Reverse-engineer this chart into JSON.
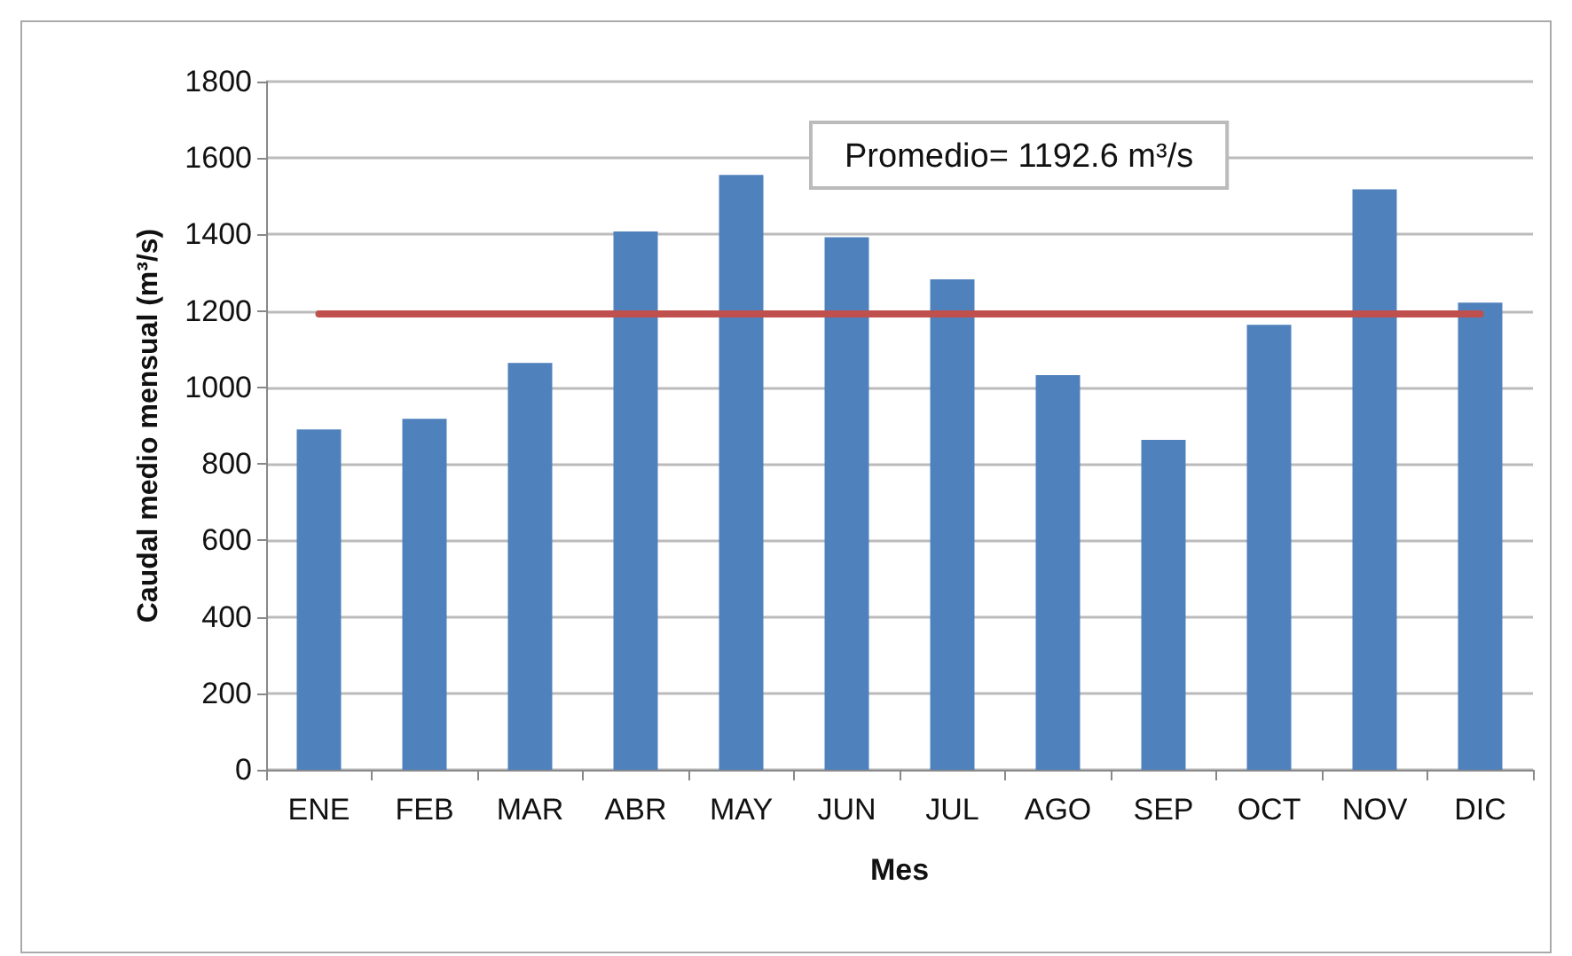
{
  "chart_data": {
    "type": "bar",
    "xlabel": "Mes",
    "ylabel": "Caudal medio mensual (m³/s)",
    "categories": [
      "ENE",
      "FEB",
      "MAR",
      "ABR",
      "MAY",
      "JUN",
      "JUL",
      "AGO",
      "SEP",
      "OCT",
      "NOV",
      "DIC"
    ],
    "values": [
      890,
      918,
      1064,
      1408,
      1556,
      1393,
      1283,
      1032,
      863,
      1164,
      1518,
      1222
    ],
    "color": "#4f81bd",
    "ylim": [
      0,
      1800
    ],
    "yticks": [
      0,
      200,
      400,
      600,
      800,
      1000,
      1200,
      1400,
      1600,
      1800
    ],
    "grid": "y",
    "annotations": [
      "Promedio= 1192.6 m³/s"
    ],
    "ref_lines": [
      {
        "axis": "y",
        "value": 1192.6,
        "color": "#c0504d",
        "line_style": "solid"
      }
    ]
  }
}
